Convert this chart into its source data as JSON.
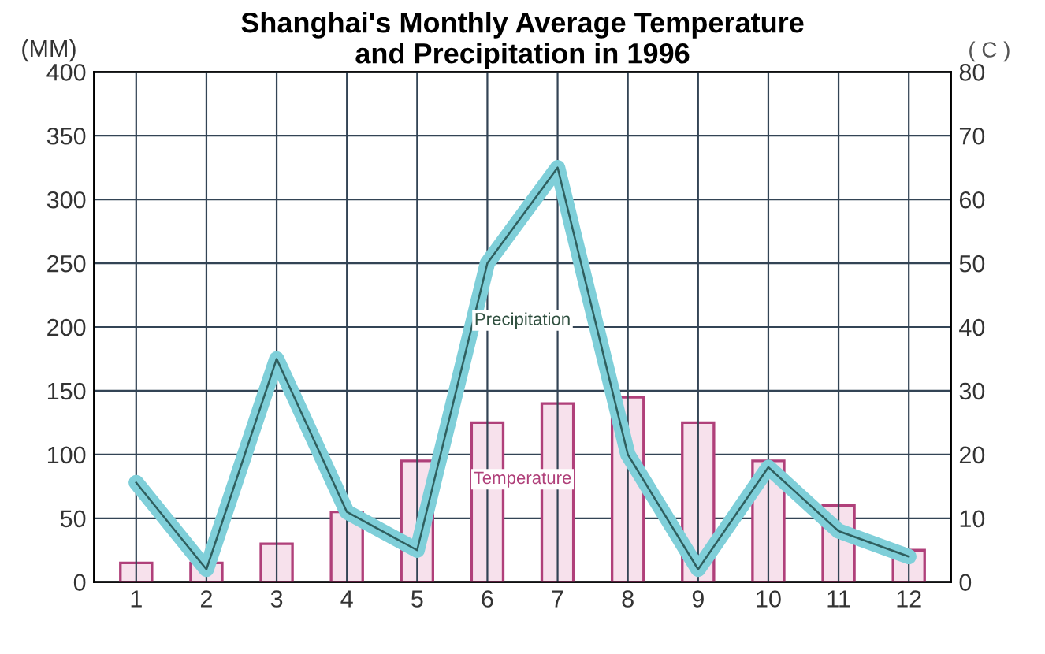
{
  "chart_data": {
    "type": "bar",
    "title": "Shanghai's Monthly Average Temperature\nand Precipitation in 1996",
    "ylabel": "(MM)",
    "y2label": "( C )",
    "categories": [
      "1",
      "2",
      "3",
      "4",
      "5",
      "6",
      "7",
      "8",
      "9",
      "10",
      "11",
      "12"
    ],
    "series": [
      {
        "name": "Precipitation",
        "type": "line",
        "color": "#7fcfd9",
        "values": [
          78,
          10,
          175,
          55,
          25,
          250,
          325,
          100,
          10,
          90,
          40,
          20
        ]
      },
      {
        "name": "Temperature",
        "axis": "y2",
        "color": "#f7e1ec",
        "values": [
          3,
          3,
          6,
          11,
          19,
          25,
          28,
          29,
          25,
          19,
          12,
          5
        ]
      }
    ],
    "ylim": [
      0,
      400
    ],
    "yticks": [
      0,
      50,
      100,
      150,
      200,
      250,
      300,
      350,
      400
    ],
    "y2lim": [
      0,
      80
    ],
    "y2ticks": [
      0,
      10,
      20,
      30,
      40,
      50,
      60,
      70,
      80
    ],
    "grid": true,
    "legend": false
  }
}
